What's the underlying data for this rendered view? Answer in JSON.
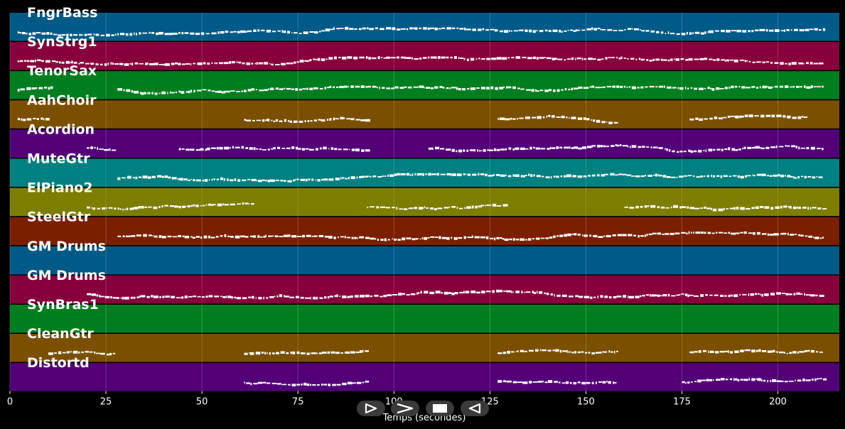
{
  "chart_data": {
    "type": "piano-roll",
    "xlabel": "Temps (secondes)",
    "xlim": [
      0,
      216
    ],
    "xticks": [
      0,
      25,
      50,
      75,
      100,
      125,
      150,
      175,
      200
    ],
    "tracks": [
      {
        "name": "FngrBass",
        "color": "#005a87",
        "segments": [
          [
            2,
            212
          ]
        ]
      },
      {
        "name": "SynStrg1",
        "color": "#87003c",
        "segments": [
          [
            2,
            212
          ]
        ]
      },
      {
        "name": "TenorSax",
        "color": "#007e1f",
        "segments": [
          [
            2,
            11
          ],
          [
            28,
            212
          ]
        ]
      },
      {
        "name": "AahChoir",
        "color": "#7a5000",
        "segments": [
          [
            2,
            10
          ],
          [
            61,
            93
          ],
          [
            127,
            158
          ],
          [
            177,
            207
          ]
        ]
      },
      {
        "name": "Acordion",
        "color": "#530078",
        "segments": [
          [
            20,
            27
          ],
          [
            44,
            93
          ],
          [
            109,
            212
          ]
        ]
      },
      {
        "name": "MuteGtr",
        "color": "#008080",
        "segments": [
          [
            28,
            212
          ]
        ]
      },
      {
        "name": "ElPiano2",
        "color": "#7d7d00",
        "segments": [
          [
            20,
            63
          ],
          [
            93,
            129
          ],
          [
            160,
            212
          ]
        ]
      },
      {
        "name": "SteelGtr",
        "color": "#7a2000",
        "segments": [
          [
            28,
            212
          ]
        ]
      },
      {
        "name": "GM Drums",
        "color": "#005a87",
        "segments": []
      },
      {
        "name": "GM Drums",
        "color": "#87003c",
        "segments": [
          [
            20,
            212
          ]
        ]
      },
      {
        "name": "SynBras1",
        "color": "#007e1f",
        "segments": []
      },
      {
        "name": "CleanGtr",
        "color": "#7a5000",
        "segments": [
          [
            10,
            27
          ],
          [
            61,
            93
          ],
          [
            127,
            158
          ],
          [
            177,
            212
          ]
        ]
      },
      {
        "name": "Distortd",
        "color": "#530078",
        "segments": [
          [
            61,
            93
          ],
          [
            127,
            158
          ],
          [
            175,
            212
          ]
        ]
      }
    ]
  },
  "transport": {
    "play_icon": "play-icon",
    "fast_forward_icon": "fast-forward-icon",
    "stop_icon": "stop-icon",
    "rewind_icon": "rewind-icon"
  }
}
